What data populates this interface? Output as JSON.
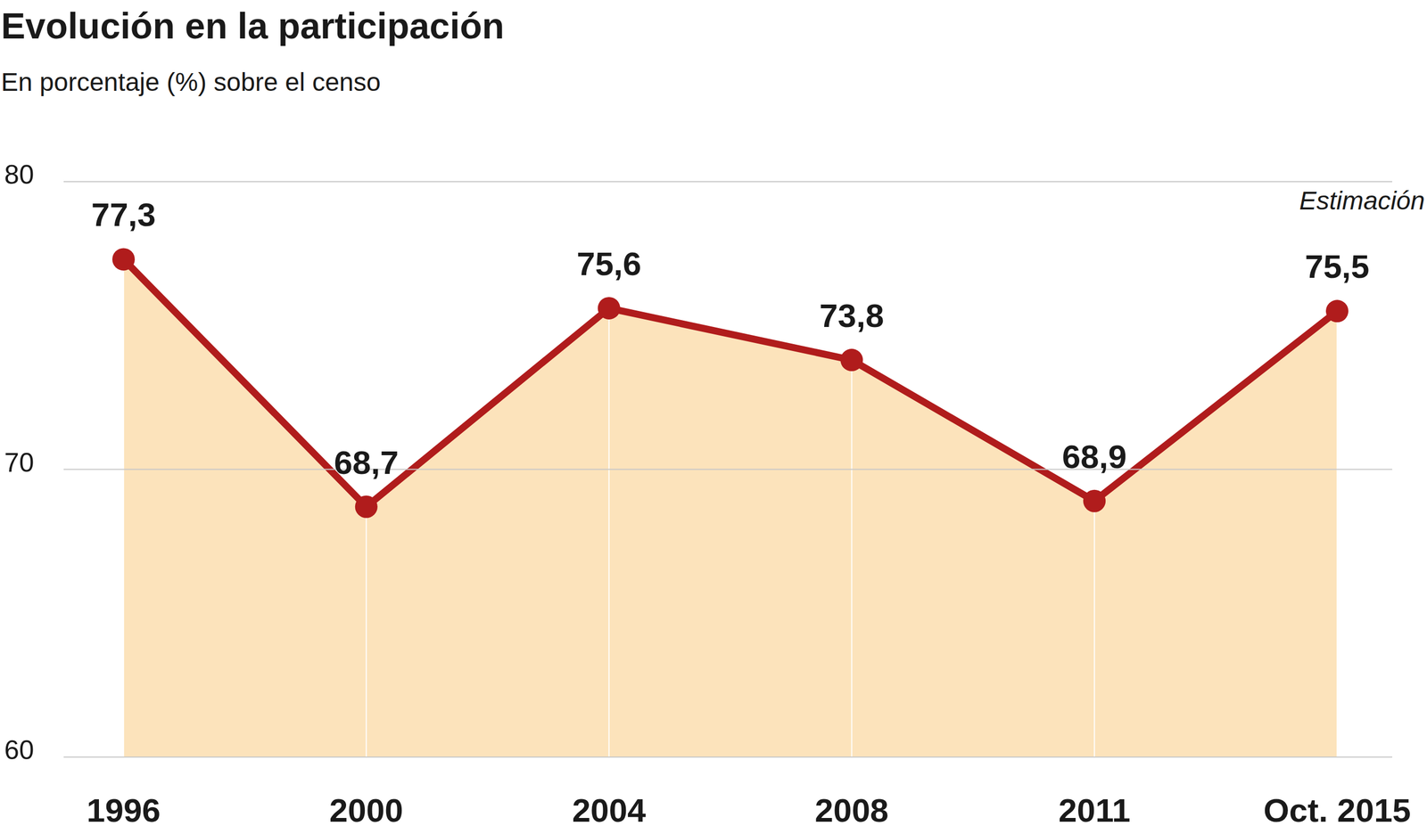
{
  "chart_data": {
    "type": "line",
    "title": "Evolución en la participación",
    "subtitle": "En porcentaje (%) sobre el censo",
    "annotation": "Estimación",
    "categories": [
      "1996",
      "2000",
      "2004",
      "2008",
      "2011",
      "Oct. 2015"
    ],
    "values": [
      77.3,
      68.7,
      75.6,
      73.8,
      68.9,
      75.5
    ],
    "value_labels": [
      "77,3",
      "68,7",
      "75,6",
      "73,8",
      "68,9",
      "75,5"
    ],
    "color": "#b01c1c",
    "ylim": [
      60,
      80
    ],
    "yticks": [
      60,
      70,
      80
    ],
    "grid": true,
    "data_labels": true,
    "marker": "circle"
  }
}
